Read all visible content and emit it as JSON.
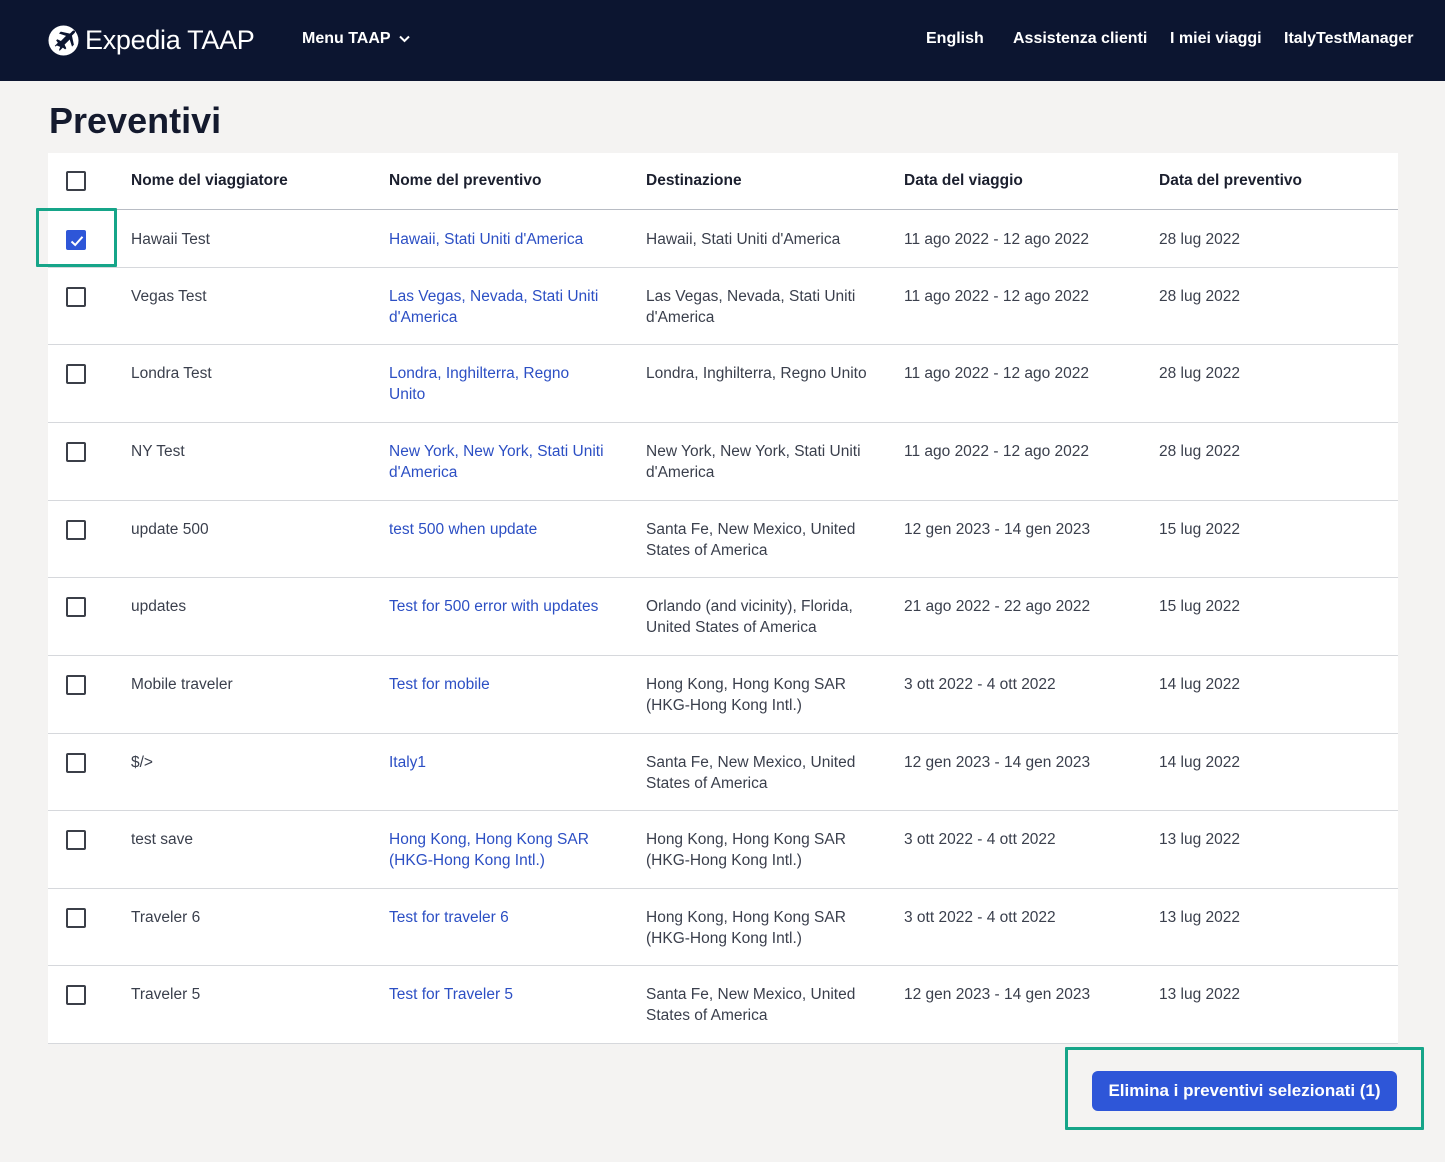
{
  "header": {
    "logo_text": "Expedia TAAP",
    "menu_label": "Menu TAAP",
    "nav": {
      "language": "English",
      "support": "Assistenza clienti",
      "trips": "I miei viaggi",
      "user": "ItalyTestManager"
    }
  },
  "page": {
    "title": "Preventivi"
  },
  "table": {
    "columns": {
      "traveler": "Nome del viaggiatore",
      "quote": "Nome del preventivo",
      "destination": "Destinazione",
      "trip_date": "Data del viaggio",
      "quote_date": "Data del preventivo"
    },
    "rows": [
      {
        "checked": true,
        "traveler": "Hawaii Test",
        "quote_lines": [
          "Hawaii, Stati Uniti d'America"
        ],
        "dest_lines": [
          "Hawaii, Stati Uniti d'America"
        ],
        "trip_date": "11 ago 2022 - 12 ago 2022",
        "quote_date": "28 lug 2022"
      },
      {
        "checked": false,
        "traveler": "Vegas Test",
        "quote_lines": [
          "Las Vegas, Nevada, Stati Uniti",
          "d'America"
        ],
        "dest_lines": [
          "Las Vegas, Nevada, Stati Uniti",
          "d'America"
        ],
        "trip_date": "11 ago 2022 - 12 ago 2022",
        "quote_date": "28 lug 2022"
      },
      {
        "checked": false,
        "traveler": "Londra Test",
        "quote_lines": [
          "Londra, Inghilterra, Regno",
          "Unito"
        ],
        "dest_lines": [
          "Londra, Inghilterra, Regno Unito"
        ],
        "trip_date": "11 ago 2022 - 12 ago 2022",
        "quote_date": "28 lug 2022"
      },
      {
        "checked": false,
        "traveler": "NY Test",
        "quote_lines": [
          "New York, New York, Stati Uniti",
          "d'America"
        ],
        "dest_lines": [
          "New York, New York, Stati Uniti",
          "d'America"
        ],
        "trip_date": "11 ago 2022 - 12 ago 2022",
        "quote_date": "28 lug 2022"
      },
      {
        "checked": false,
        "traveler": "update 500",
        "quote_lines": [
          "test 500 when update"
        ],
        "dest_lines": [
          "Santa Fe, New Mexico, United",
          "States of America"
        ],
        "trip_date": "12 gen 2023 - 14 gen 2023",
        "quote_date": "15 lug 2022"
      },
      {
        "checked": false,
        "traveler": "updates",
        "quote_lines": [
          "Test for 500 error with updates"
        ],
        "dest_lines": [
          "Orlando (and vicinity), Florida,",
          "United States of America"
        ],
        "trip_date": "21 ago 2022 - 22 ago 2022",
        "quote_date": "15 lug 2022"
      },
      {
        "checked": false,
        "traveler": "Mobile traveler",
        "quote_lines": [
          "Test for mobile"
        ],
        "dest_lines": [
          "Hong Kong, Hong Kong SAR",
          "(HKG-Hong Kong Intl.)"
        ],
        "trip_date": "3 ott 2022 - 4 ott 2022",
        "quote_date": "14 lug 2022"
      },
      {
        "checked": false,
        "traveler": "$/>",
        "quote_lines": [
          "Italy1"
        ],
        "dest_lines": [
          "Santa Fe, New Mexico, United",
          "States of America"
        ],
        "trip_date": "12 gen 2023 - 14 gen 2023",
        "quote_date": "14 lug 2022"
      },
      {
        "checked": false,
        "traveler": "test save",
        "quote_lines": [
          "Hong Kong, Hong Kong SAR",
          "(HKG-Hong Kong Intl.)"
        ],
        "dest_lines": [
          "Hong Kong, Hong Kong SAR",
          "(HKG-Hong Kong Intl.)"
        ],
        "trip_date": "3 ott 2022 - 4 ott 2022",
        "quote_date": "13 lug 2022"
      },
      {
        "checked": false,
        "traveler": "Traveler 6",
        "quote_lines": [
          "Test for traveler 6"
        ],
        "dest_lines": [
          "Hong Kong, Hong Kong SAR",
          "(HKG-Hong Kong Intl.)"
        ],
        "trip_date": "3 ott 2022 - 4 ott 2022",
        "quote_date": "13 lug 2022"
      },
      {
        "checked": false,
        "traveler": "Traveler 5",
        "quote_lines": [
          "Test for Traveler 5"
        ],
        "dest_lines": [
          "Santa Fe, New Mexico, United",
          "States of America"
        ],
        "trip_date": "12 gen 2023 - 14 gen 2023",
        "quote_date": "13 lug 2022"
      }
    ]
  },
  "actions": {
    "delete_label": "Elimina i preventivi selezionati (1)"
  },
  "colors": {
    "header_bg": "#0c1530",
    "accent": "#2e56d8",
    "link": "#2c4fc4",
    "highlight": "#16a589"
  }
}
